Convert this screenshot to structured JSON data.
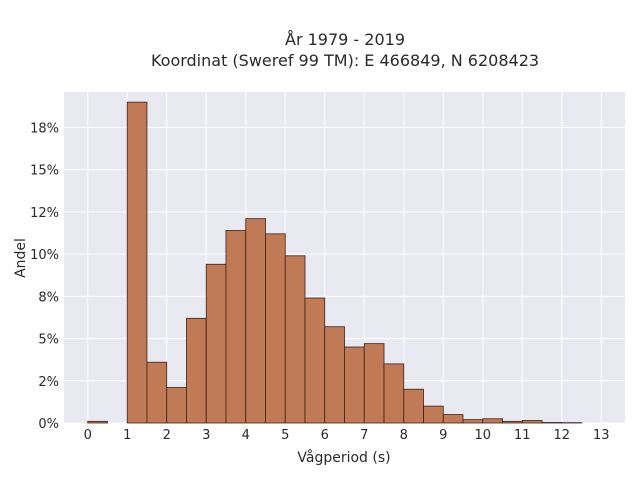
{
  "chart_data": {
    "type": "bar",
    "title_line1": "År 1979 - 2019",
    "title_line2": "Koordinat (Sweref 99 TM): E 466849, N 6208423",
    "xlabel": "Vågperiod (s)",
    "ylabel": "Andel",
    "bin_width": 0.5,
    "bin_starts": [
      0,
      0.5,
      1,
      1.5,
      2,
      2.5,
      3,
      3.5,
      4,
      4.5,
      5,
      5.5,
      6,
      6.5,
      7,
      7.5,
      8,
      8.5,
      9,
      9.5,
      10,
      10.5,
      11,
      11.5,
      12,
      12.5
    ],
    "values": [
      0.1,
      0,
      19.0,
      3.6,
      2.1,
      6.2,
      9.4,
      11.4,
      12.1,
      11.2,
      9.9,
      7.4,
      5.7,
      4.5,
      4.7,
      3.5,
      2.0,
      1.0,
      0.5,
      0.2,
      0.25,
      0.1,
      0.15,
      0.03,
      0.02,
      0
    ],
    "xlim": [
      -0.6,
      13.6
    ],
    "ylim": [
      0,
      19.6
    ],
    "x_ticks": [
      0,
      1,
      2,
      3,
      4,
      5,
      6,
      7,
      8,
      9,
      10,
      11,
      12,
      13
    ],
    "y_ticks": [
      0,
      2.5,
      5,
      7.5,
      10,
      12.5,
      15,
      17.5
    ],
    "y_tick_labels": [
      "0%",
      "2%",
      "5%",
      "8%",
      "10%",
      "12%",
      "15%",
      "18%"
    ],
    "grid": true,
    "bar_color": "#c07a55",
    "bar_edge_color": "#3b2418",
    "plot_bg": "#e9e9f1",
    "grid_color": "#ffffff"
  }
}
